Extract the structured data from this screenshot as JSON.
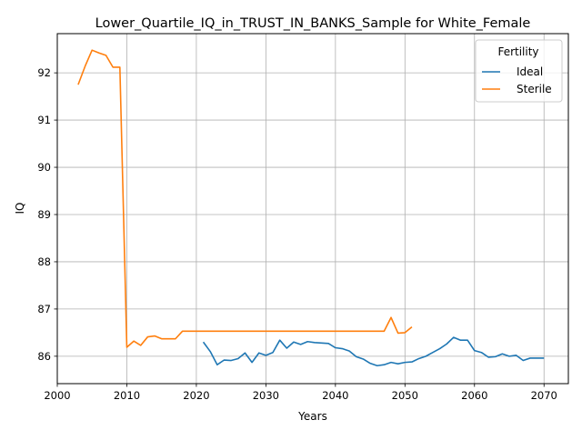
{
  "chart_data": {
    "type": "line",
    "title": "Lower_Quartile_IQ_in_TRUST_IN_BANKS_Sample for White_Female",
    "xlabel": "Years",
    "ylabel": "IQ",
    "xlim": [
      2000,
      2073.5
    ],
    "ylim": [
      85.42,
      92.83
    ],
    "xticks": [
      2000,
      2010,
      2020,
      2030,
      2040,
      2050,
      2060,
      2070
    ],
    "yticks": [
      86,
      87,
      88,
      89,
      90,
      91,
      92
    ],
    "grid": true,
    "legend": {
      "title": "Fertility",
      "placement": "top-right"
    },
    "series": [
      {
        "name": "Ideal",
        "color": "#1f77b4",
        "x": [
          2021,
          2022,
          2023,
          2024,
          2025,
          2026,
          2027,
          2028,
          2029,
          2030,
          2031,
          2032,
          2033,
          2034,
          2035,
          2036,
          2037,
          2038,
          2039,
          2040,
          2041,
          2042,
          2043,
          2044,
          2045,
          2046,
          2047,
          2048,
          2049,
          2050,
          2051,
          2052,
          2053,
          2054,
          2055,
          2056,
          2057,
          2058,
          2059,
          2060,
          2061,
          2062,
          2063,
          2064,
          2065,
          2066,
          2067,
          2068,
          2069,
          2070
        ],
        "y": [
          86.3,
          86.1,
          85.82,
          85.92,
          85.91,
          85.95,
          86.07,
          85.87,
          86.07,
          86.02,
          86.08,
          86.34,
          86.17,
          86.3,
          86.25,
          86.31,
          86.29,
          86.28,
          86.27,
          86.18,
          86.16,
          86.11,
          85.99,
          85.94,
          85.85,
          85.8,
          85.82,
          85.87,
          85.84,
          85.87,
          85.88,
          85.95,
          86.0,
          86.08,
          86.16,
          86.26,
          86.4,
          86.34,
          86.34,
          86.12,
          86.08,
          85.98,
          85.99,
          86.05,
          86.0,
          86.02,
          85.91,
          85.96,
          85.96,
          85.96
        ]
      },
      {
        "name": "Sterile",
        "color": "#ff7f0e",
        "x": [
          2003,
          2004,
          2005,
          2006,
          2007,
          2008,
          2009,
          2010,
          2011,
          2012,
          2013,
          2014,
          2015,
          2016,
          2017,
          2018,
          2019,
          2020,
          2021,
          2022,
          2023,
          2024,
          2025,
          2026,
          2027,
          2028,
          2029,
          2030,
          2031,
          2032,
          2033,
          2034,
          2035,
          2036,
          2037,
          2038,
          2039,
          2040,
          2041,
          2042,
          2043,
          2044,
          2045,
          2046,
          2047,
          2048,
          2049,
          2050,
          2051
        ],
        "y": [
          91.75,
          92.14,
          92.48,
          92.42,
          92.37,
          92.12,
          92.12,
          86.19,
          86.32,
          86.23,
          86.41,
          86.43,
          86.37,
          86.37,
          86.37,
          86.53,
          86.53,
          86.53,
          86.53,
          86.53,
          86.53,
          86.53,
          86.53,
          86.53,
          86.53,
          86.53,
          86.53,
          86.53,
          86.53,
          86.53,
          86.53,
          86.53,
          86.53,
          86.53,
          86.53,
          86.53,
          86.53,
          86.53,
          86.53,
          86.53,
          86.53,
          86.53,
          86.53,
          86.53,
          86.53,
          86.82,
          86.49,
          86.5,
          86.62
        ]
      }
    ]
  }
}
